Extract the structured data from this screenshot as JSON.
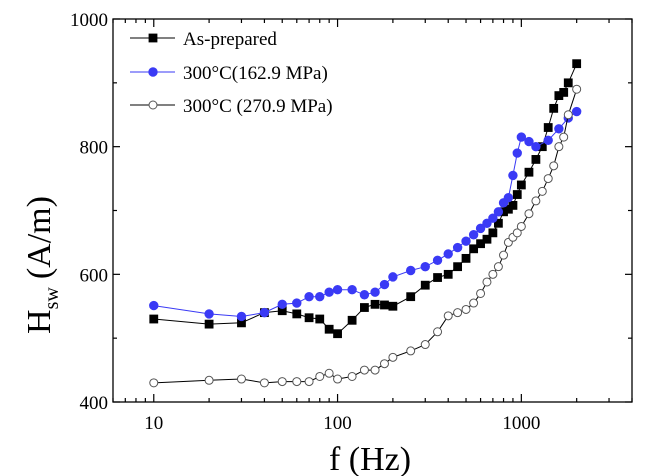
{
  "chart_data": {
    "type": "scatter",
    "title": "",
    "xlabel": "f (Hz)",
    "ylabel_main": "H",
    "ylabel_sub": "sw",
    "ylabel_unit": "(A/m)",
    "x_scale": "log",
    "xlim": [
      6,
      4000
    ],
    "ylim": [
      400,
      1000
    ],
    "x_ticks": [
      10,
      100,
      1000
    ],
    "x_tick_labels": [
      "10",
      "100",
      "1000"
    ],
    "y_ticks": [
      400,
      600,
      800,
      1000
    ],
    "y_tick_labels": [
      "400",
      "600",
      "800",
      "1000"
    ],
    "grid": false,
    "legend_position": "top-left",
    "series": [
      {
        "name": "As-prepared",
        "marker": "square-filled",
        "color": "#000000",
        "x": [
          10,
          20,
          30,
          40,
          50,
          60,
          70,
          80,
          90,
          100,
          120,
          140,
          160,
          180,
          200,
          250,
          300,
          350,
          400,
          450,
          500,
          550,
          600,
          650,
          700,
          750,
          800,
          850,
          900,
          950,
          1000,
          1100,
          1200,
          1300,
          1400,
          1500,
          1600,
          1700,
          1800,
          2000
        ],
        "y": [
          530,
          522,
          524,
          540,
          543,
          538,
          532,
          530,
          514,
          507,
          528,
          548,
          553,
          552,
          550,
          565,
          583,
          595,
          600,
          612,
          625,
          640,
          648,
          655,
          665,
          680,
          698,
          702,
          708,
          725,
          740,
          760,
          780,
          800,
          830,
          860,
          880,
          885,
          900,
          930
        ]
      },
      {
        "name": "300°C(162.9 MPa)",
        "marker": "circle-filled",
        "color": "#3a3af5",
        "x": [
          10,
          20,
          30,
          40,
          50,
          60,
          70,
          80,
          90,
          100,
          120,
          140,
          160,
          180,
          200,
          250,
          300,
          350,
          400,
          450,
          500,
          550,
          600,
          650,
          700,
          750,
          800,
          850,
          900,
          950,
          1000,
          1100,
          1200,
          1400,
          1600,
          1800,
          2000
        ],
        "y": [
          551,
          538,
          534,
          540,
          553,
          555,
          565,
          565,
          572,
          576,
          576,
          568,
          572,
          584,
          596,
          606,
          612,
          622,
          632,
          642,
          652,
          662,
          672,
          680,
          688,
          698,
          712,
          720,
          755,
          790,
          815,
          808,
          800,
          810,
          828,
          845,
          855
        ]
      },
      {
        "name": "300°C (270.9 MPa)",
        "marker": "circle-open",
        "color": "#000000",
        "x": [
          10,
          20,
          30,
          40,
          50,
          60,
          70,
          80,
          90,
          100,
          120,
          140,
          160,
          180,
          200,
          250,
          300,
          350,
          400,
          450,
          500,
          550,
          600,
          650,
          700,
          750,
          800,
          850,
          900,
          950,
          1000,
          1100,
          1200,
          1300,
          1400,
          1500,
          1600,
          1700,
          1800,
          2000
        ],
        "y": [
          430,
          434,
          436,
          430,
          432,
          432,
          432,
          440,
          445,
          436,
          440,
          450,
          450,
          460,
          470,
          480,
          490,
          510,
          535,
          540,
          545,
          555,
          570,
          588,
          600,
          612,
          630,
          650,
          658,
          665,
          675,
          695,
          715,
          730,
          750,
          770,
          800,
          815,
          850,
          890
        ]
      }
    ]
  }
}
